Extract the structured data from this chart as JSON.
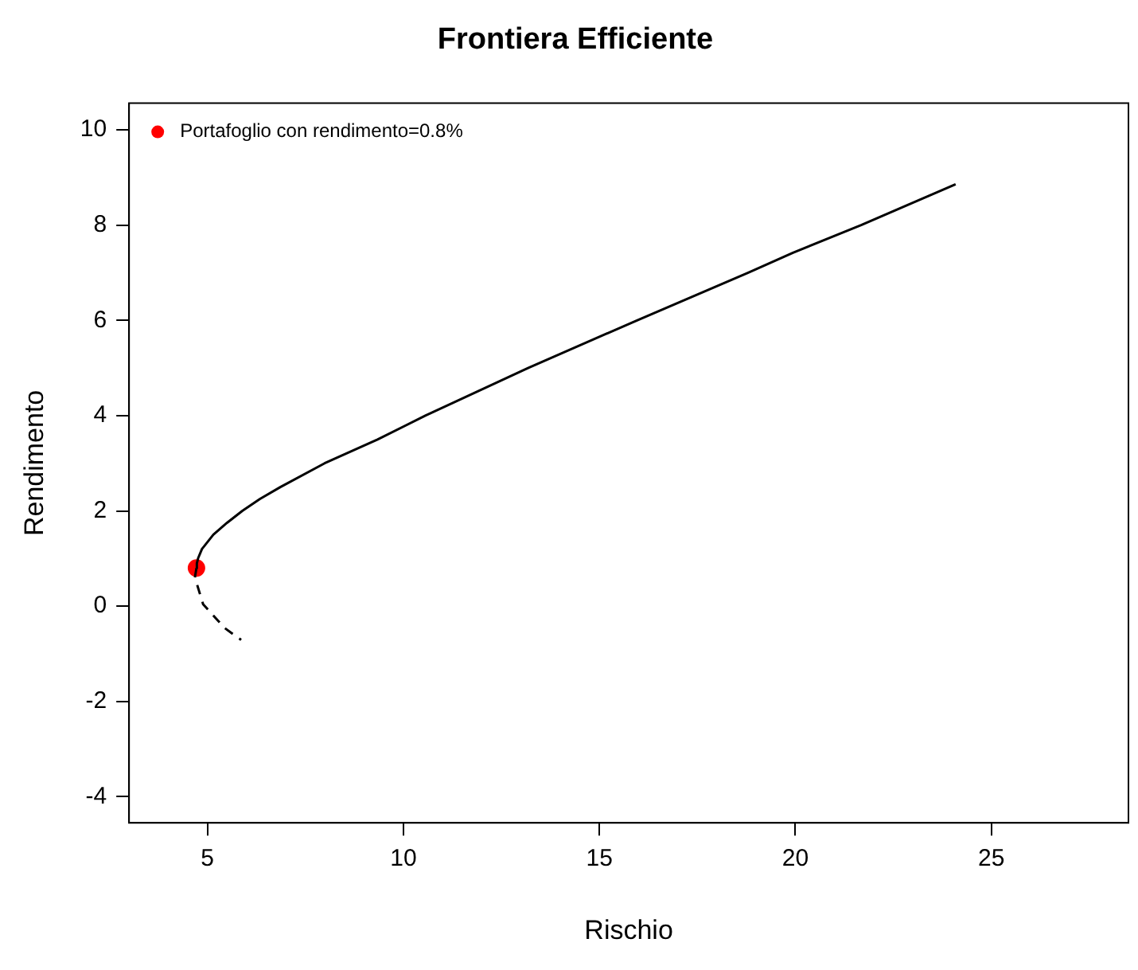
{
  "chart_data": {
    "type": "line",
    "title": "Frontiera Efficiente",
    "xlabel": "Rischio",
    "ylabel": "Rendimento",
    "xlim": [
      3,
      28.5
    ],
    "xticks": [
      5,
      10,
      15,
      20,
      25
    ],
    "ylim": [
      -4.55,
      10.56
    ],
    "yticks": [
      -4,
      -2,
      0,
      2,
      4,
      6,
      8,
      10
    ],
    "grid": false,
    "legend": "top left",
    "series": [
      {
        "type": "line",
        "color": "#000000",
        "line_style": "solid",
        "marker": "none",
        "x": [
          4.72,
          4.73,
          4.76,
          4.86,
          5.15,
          5.5,
          5.89,
          6.34,
          6.86,
          7.99,
          9.34,
          10.56,
          13.18,
          15.96,
          18.8,
          19.94,
          21.68,
          24.09
        ],
        "values": [
          0.8,
          0.9,
          1.0,
          1.2,
          1.5,
          1.75,
          2.0,
          2.25,
          2.5,
          3.0,
          3.5,
          4.0,
          5.0,
          6.0,
          7.0,
          7.42,
          8.0,
          8.86
        ]
      },
      {
        "type": "line",
        "color": "#000000",
        "line_style": "dashed",
        "marker": "none",
        "x": [
          4.72,
          4.68,
          4.89,
          5.44,
          5.86
        ],
        "values": [
          0.8,
          0.6,
          0.04,
          -0.46,
          -0.71
        ]
      },
      {
        "type": "scatter",
        "name": "Portafoglio con rendimento=0.8%",
        "color": "#ff0000",
        "marker": "circle",
        "x": [
          4.72
        ],
        "values": [
          0.8
        ]
      }
    ]
  }
}
